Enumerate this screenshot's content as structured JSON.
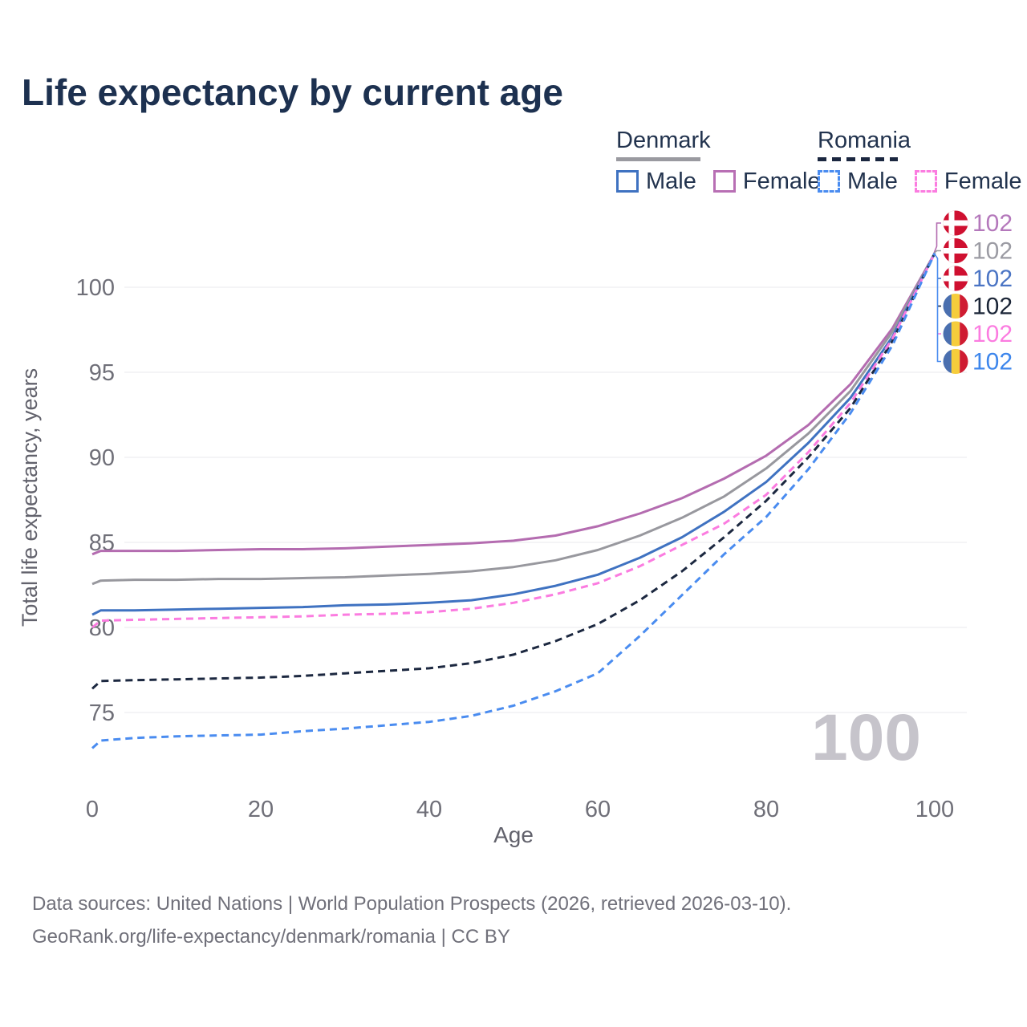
{
  "title": "Life expectancy by current age",
  "current_age_indicator": "100",
  "legend": {
    "groups": [
      {
        "name": "Denmark",
        "line_style": "solid",
        "rule_color": "#9a9aa0",
        "items": [
          {
            "label": "Male",
            "color": "#3f72c1"
          },
          {
            "label": "Female",
            "color": "#b86fb4"
          }
        ]
      },
      {
        "name": "Romania",
        "line_style": "dashed",
        "rule_color": "#1b2740",
        "items": [
          {
            "label": "Male",
            "color": "#4a8cf0"
          },
          {
            "label": "Female",
            "color": "#fb7ce0"
          }
        ]
      }
    ]
  },
  "chart_data": {
    "type": "line",
    "title": "Life expectancy by current age",
    "xlabel": "Age",
    "ylabel": "Total life expectancy, years",
    "xlim": [
      0,
      100
    ],
    "ylim": [
      71.5,
      103
    ],
    "xticks": [
      0,
      20,
      40,
      60,
      80,
      100
    ],
    "yticks": [
      75,
      80,
      85,
      90,
      95,
      100
    ],
    "grid": "horizontal",
    "legend_position": "top-right",
    "x_ages": [
      0,
      1,
      5,
      10,
      15,
      20,
      25,
      30,
      35,
      40,
      45,
      50,
      55,
      60,
      65,
      70,
      75,
      80,
      85,
      90,
      95,
      100
    ],
    "series": [
      {
        "name": "Denmark Female",
        "country": "Denmark",
        "sex": "Female",
        "color": "#b46cb0",
        "label_color": "#b478bb",
        "dashed": false,
        "flag": "denmark",
        "end_label": "102",
        "values": [
          84.3,
          84.5,
          84.5,
          84.5,
          84.55,
          84.6,
          84.6,
          84.65,
          84.75,
          84.85,
          84.95,
          85.1,
          85.4,
          85.95,
          86.7,
          87.6,
          88.75,
          90.1,
          91.9,
          94.3,
          97.6,
          102
        ]
      },
      {
        "name": "Denmark",
        "country": "Denmark",
        "sex": "Both",
        "color": "#98989e",
        "label_color": "#9b9ba3",
        "dashed": false,
        "flag": "denmark",
        "end_label": "102",
        "values": [
          82.55,
          82.75,
          82.8,
          82.8,
          82.85,
          82.85,
          82.9,
          82.95,
          83.05,
          83.15,
          83.3,
          83.55,
          83.95,
          84.55,
          85.4,
          86.45,
          87.7,
          89.35,
          91.4,
          93.9,
          97.4,
          102
        ]
      },
      {
        "name": "Denmark Male",
        "country": "Denmark",
        "sex": "Male",
        "color": "#3f72c1",
        "label_color": "#4a74c4",
        "dashed": false,
        "flag": "denmark",
        "end_label": "102",
        "values": [
          80.75,
          81.0,
          81.0,
          81.05,
          81.1,
          81.15,
          81.2,
          81.3,
          81.35,
          81.45,
          81.6,
          81.95,
          82.45,
          83.1,
          84.1,
          85.3,
          86.8,
          88.55,
          90.85,
          93.5,
          97.1,
          102
        ]
      },
      {
        "name": "Romania",
        "country": "Romania",
        "sex": "Both",
        "color": "#1c2840",
        "label_color": "#1b2537",
        "dashed": true,
        "flag": "romania",
        "end_label": "102",
        "values": [
          76.4,
          76.85,
          76.9,
          76.95,
          77.0,
          77.05,
          77.15,
          77.3,
          77.45,
          77.6,
          77.9,
          78.4,
          79.2,
          80.2,
          81.6,
          83.3,
          85.3,
          87.45,
          90.0,
          92.9,
          96.85,
          102
        ]
      },
      {
        "name": "Romania Female",
        "country": "Romania",
        "sex": "Female",
        "color": "#fb7ce0",
        "label_color": "#fb7ce0",
        "dashed": true,
        "flag": "romania",
        "end_label": "102",
        "values": [
          80.0,
          80.4,
          80.45,
          80.5,
          80.55,
          80.6,
          80.65,
          80.75,
          80.8,
          80.9,
          81.1,
          81.45,
          81.95,
          82.6,
          83.6,
          84.85,
          86.1,
          87.8,
          90.3,
          93.2,
          97.0,
          102
        ]
      },
      {
        "name": "Romania Male",
        "country": "Romania",
        "sex": "Male",
        "color": "#4a8cf0",
        "label_color": "#3d86ec",
        "dashed": true,
        "flag": "romania",
        "end_label": "102",
        "values": [
          72.9,
          73.35,
          73.5,
          73.6,
          73.65,
          73.7,
          73.9,
          74.05,
          74.25,
          74.45,
          74.8,
          75.4,
          76.25,
          77.3,
          79.5,
          81.9,
          84.3,
          86.5,
          89.3,
          92.6,
          96.6,
          102
        ]
      }
    ],
    "flag_colors": {
      "denmark_red": "#cf1030",
      "denmark_cross": "#ffffff",
      "romania_blue": "#4a6faf",
      "romania_yellow": "#f6cd3c",
      "romania_red": "#cf1c32"
    }
  },
  "footer": {
    "line1": "Data sources: United Nations | World Population Prospects (2026, retrieved 2026-03-10).",
    "line2": "GeoRank.org/life-expectancy/denmark/romania | CC BY"
  }
}
